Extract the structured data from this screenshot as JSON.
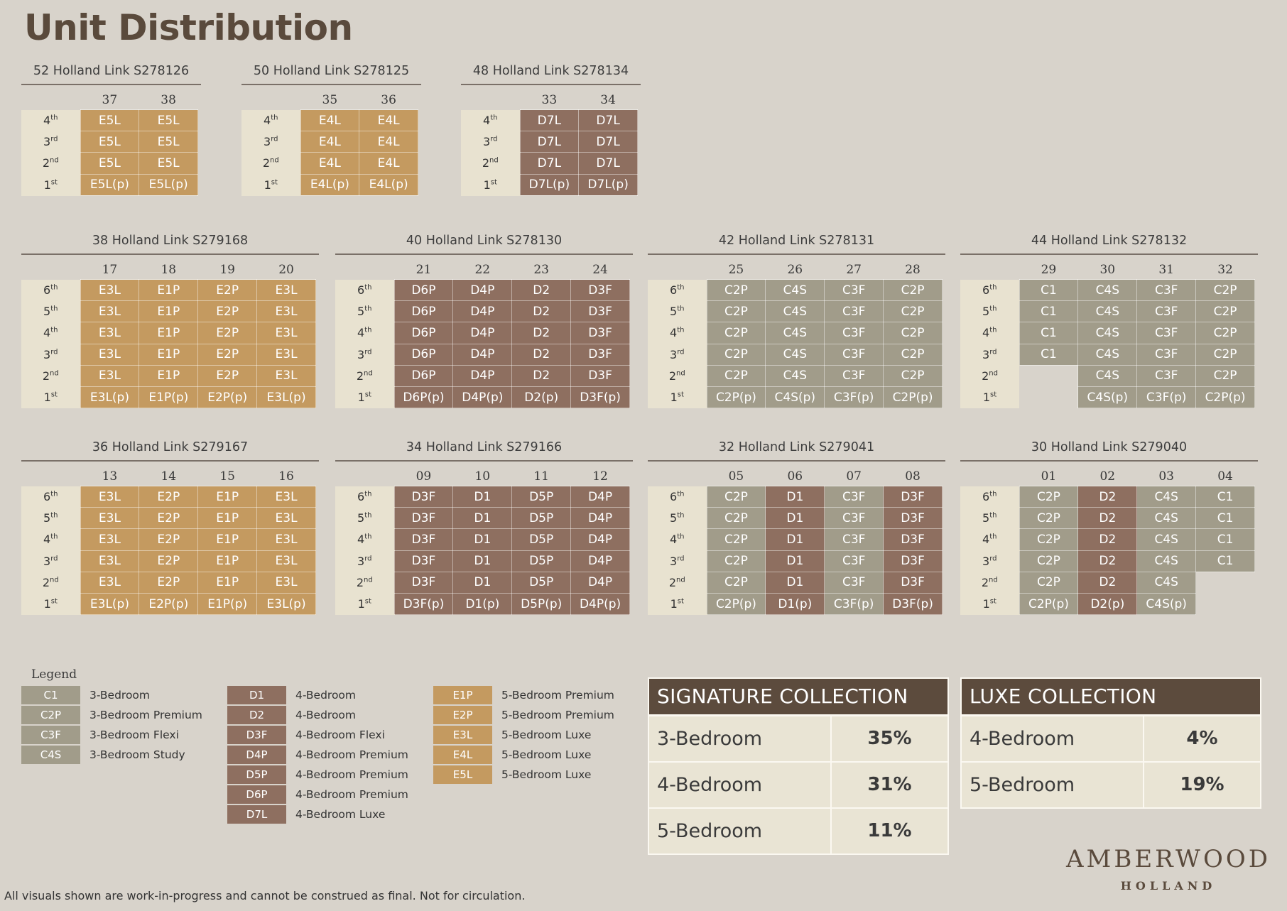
{
  "page": {
    "title": "Unit Distribution",
    "disclaimer": "All visuals shown are work-in-progress and cannot be construed as final.  Not for circulation."
  },
  "colors": {
    "E": "#c49a60",
    "D": "#8e6f60",
    "C": "#a19c8a",
    "floor_bg": "#e8e2d0"
  },
  "blocks": [
    {
      "title": "52 Holland Link S278126",
      "stacks": [
        "37",
        "38"
      ],
      "floors": [
        {
          "f": "4",
          "s": "th",
          "u": [
            "E5L",
            "E5L"
          ]
        },
        {
          "f": "3",
          "s": "rd",
          "u": [
            "E5L",
            "E5L"
          ]
        },
        {
          "f": "2",
          "s": "nd",
          "u": [
            "E5L",
            "E5L"
          ]
        },
        {
          "f": "1",
          "s": "st",
          "u": [
            "E5L(p)",
            "E5L(p)"
          ]
        }
      ]
    },
    {
      "title": "50 Holland Link S278125",
      "stacks": [
        "35",
        "36"
      ],
      "floors": [
        {
          "f": "4",
          "s": "th",
          "u": [
            "E4L",
            "E4L"
          ]
        },
        {
          "f": "3",
          "s": "rd",
          "u": [
            "E4L",
            "E4L"
          ]
        },
        {
          "f": "2",
          "s": "nd",
          "u": [
            "E4L",
            "E4L"
          ]
        },
        {
          "f": "1",
          "s": "st",
          "u": [
            "E4L(p)",
            "E4L(p)"
          ]
        }
      ]
    },
    {
      "title": "48 Holland Link S278134",
      "stacks": [
        "33",
        "34"
      ],
      "floors": [
        {
          "f": "4",
          "s": "th",
          "u": [
            "D7L",
            "D7L"
          ]
        },
        {
          "f": "3",
          "s": "rd",
          "u": [
            "D7L",
            "D7L"
          ]
        },
        {
          "f": "2",
          "s": "nd",
          "u": [
            "D7L",
            "D7L"
          ]
        },
        {
          "f": "1",
          "s": "st",
          "u": [
            "D7L(p)",
            "D7L(p)"
          ]
        }
      ]
    },
    {
      "title": "38 Holland Link S279168",
      "stacks": [
        "17",
        "18",
        "19",
        "20"
      ],
      "floors": [
        {
          "f": "6",
          "s": "th",
          "u": [
            "E3L",
            "E1P",
            "E2P",
            "E3L"
          ]
        },
        {
          "f": "5",
          "s": "th",
          "u": [
            "E3L",
            "E1P",
            "E2P",
            "E3L"
          ]
        },
        {
          "f": "4",
          "s": "th",
          "u": [
            "E3L",
            "E1P",
            "E2P",
            "E3L"
          ]
        },
        {
          "f": "3",
          "s": "rd",
          "u": [
            "E3L",
            "E1P",
            "E2P",
            "E3L"
          ]
        },
        {
          "f": "2",
          "s": "nd",
          "u": [
            "E3L",
            "E1P",
            "E2P",
            "E3L"
          ]
        },
        {
          "f": "1",
          "s": "st",
          "u": [
            "E3L(p)",
            "E1P(p)",
            "E2P(p)",
            "E3L(p)"
          ]
        }
      ]
    },
    {
      "title": "40 Holland Link S278130",
      "stacks": [
        "21",
        "22",
        "23",
        "24"
      ],
      "floors": [
        {
          "f": "6",
          "s": "th",
          "u": [
            "D6P",
            "D4P",
            "D2",
            "D3F"
          ]
        },
        {
          "f": "5",
          "s": "th",
          "u": [
            "D6P",
            "D4P",
            "D2",
            "D3F"
          ]
        },
        {
          "f": "4",
          "s": "th",
          "u": [
            "D6P",
            "D4P",
            "D2",
            "D3F"
          ]
        },
        {
          "f": "3",
          "s": "rd",
          "u": [
            "D6P",
            "D4P",
            "D2",
            "D3F"
          ]
        },
        {
          "f": "2",
          "s": "nd",
          "u": [
            "D6P",
            "D4P",
            "D2",
            "D3F"
          ]
        },
        {
          "f": "1",
          "s": "st",
          "u": [
            "D6P(p)",
            "D4P(p)",
            "D2(p)",
            "D3F(p)"
          ]
        }
      ]
    },
    {
      "title": "42 Holland Link S278131",
      "stacks": [
        "25",
        "26",
        "27",
        "28"
      ],
      "floors": [
        {
          "f": "6",
          "s": "th",
          "u": [
            "C2P",
            "C4S",
            "C3F",
            "C2P"
          ]
        },
        {
          "f": "5",
          "s": "th",
          "u": [
            "C2P",
            "C4S",
            "C3F",
            "C2P"
          ]
        },
        {
          "f": "4",
          "s": "th",
          "u": [
            "C2P",
            "C4S",
            "C3F",
            "C2P"
          ]
        },
        {
          "f": "3",
          "s": "rd",
          "u": [
            "C2P",
            "C4S",
            "C3F",
            "C2P"
          ]
        },
        {
          "f": "2",
          "s": "nd",
          "u": [
            "C2P",
            "C4S",
            "C3F",
            "C2P"
          ]
        },
        {
          "f": "1",
          "s": "st",
          "u": [
            "C2P(p)",
            "C4S(p)",
            "C3F(p)",
            "C2P(p)"
          ]
        }
      ]
    },
    {
      "title": "44 Holland Link S278132",
      "stacks": [
        "29",
        "30",
        "31",
        "32"
      ],
      "floors": [
        {
          "f": "6",
          "s": "th",
          "u": [
            "C1",
            "C4S",
            "C3F",
            "C2P"
          ]
        },
        {
          "f": "5",
          "s": "th",
          "u": [
            "C1",
            "C4S",
            "C3F",
            "C2P"
          ]
        },
        {
          "f": "4",
          "s": "th",
          "u": [
            "C1",
            "C4S",
            "C3F",
            "C2P"
          ]
        },
        {
          "f": "3",
          "s": "rd",
          "u": [
            "C1",
            "C4S",
            "C3F",
            "C2P"
          ]
        },
        {
          "f": "2",
          "s": "nd",
          "u": [
            "",
            "C4S",
            "C3F",
            "C2P"
          ]
        },
        {
          "f": "1",
          "s": "st",
          "u": [
            "",
            "C4S(p)",
            "C3F(p)",
            "C2P(p)"
          ]
        }
      ]
    },
    {
      "title": "36 Holland Link S279167",
      "stacks": [
        "13",
        "14",
        "15",
        "16"
      ],
      "floors": [
        {
          "f": "6",
          "s": "th",
          "u": [
            "E3L",
            "E2P",
            "E1P",
            "E3L"
          ]
        },
        {
          "f": "5",
          "s": "th",
          "u": [
            "E3L",
            "E2P",
            "E1P",
            "E3L"
          ]
        },
        {
          "f": "4",
          "s": "th",
          "u": [
            "E3L",
            "E2P",
            "E1P",
            "E3L"
          ]
        },
        {
          "f": "3",
          "s": "rd",
          "u": [
            "E3L",
            "E2P",
            "E1P",
            "E3L"
          ]
        },
        {
          "f": "2",
          "s": "nd",
          "u": [
            "E3L",
            "E2P",
            "E1P",
            "E3L"
          ]
        },
        {
          "f": "1",
          "s": "st",
          "u": [
            "E3L(p)",
            "E2P(p)",
            "E1P(p)",
            "E3L(p)"
          ]
        }
      ]
    },
    {
      "title": "34 Holland Link S279166",
      "stacks": [
        "09",
        "10",
        "11",
        "12"
      ],
      "floors": [
        {
          "f": "6",
          "s": "th",
          "u": [
            "D3F",
            "D1",
            "D5P",
            "D4P"
          ]
        },
        {
          "f": "5",
          "s": "th",
          "u": [
            "D3F",
            "D1",
            "D5P",
            "D4P"
          ]
        },
        {
          "f": "4",
          "s": "th",
          "u": [
            "D3F",
            "D1",
            "D5P",
            "D4P"
          ]
        },
        {
          "f": "3",
          "s": "rd",
          "u": [
            "D3F",
            "D1",
            "D5P",
            "D4P"
          ]
        },
        {
          "f": "2",
          "s": "nd",
          "u": [
            "D3F",
            "D1",
            "D5P",
            "D4P"
          ]
        },
        {
          "f": "1",
          "s": "st",
          "u": [
            "D3F(p)",
            "D1(p)",
            "D5P(p)",
            "D4P(p)"
          ]
        }
      ]
    },
    {
      "title": "32 Holland Link S279041",
      "stacks": [
        "05",
        "06",
        "07",
        "08"
      ],
      "floors": [
        {
          "f": "6",
          "s": "th",
          "u": [
            "C2P",
            "D1",
            "C3F",
            "D3F"
          ]
        },
        {
          "f": "5",
          "s": "th",
          "u": [
            "C2P",
            "D1",
            "C3F",
            "D3F"
          ]
        },
        {
          "f": "4",
          "s": "th",
          "u": [
            "C2P",
            "D1",
            "C3F",
            "D3F"
          ]
        },
        {
          "f": "3",
          "s": "rd",
          "u": [
            "C2P",
            "D1",
            "C3F",
            "D3F"
          ]
        },
        {
          "f": "2",
          "s": "nd",
          "u": [
            "C2P",
            "D1",
            "C3F",
            "D3F"
          ]
        },
        {
          "f": "1",
          "s": "st",
          "u": [
            "C2P(p)",
            "D1(p)",
            "C3F(p)",
            "D3F(p)"
          ]
        }
      ]
    },
    {
      "title": "30 Holland Link S279040",
      "stacks": [
        "01",
        "02",
        "03",
        "04"
      ],
      "floors": [
        {
          "f": "6",
          "s": "th",
          "u": [
            "C2P",
            "D2",
            "C4S",
            "C1"
          ]
        },
        {
          "f": "5",
          "s": "th",
          "u": [
            "C2P",
            "D2",
            "C4S",
            "C1"
          ]
        },
        {
          "f": "4",
          "s": "th",
          "u": [
            "C2P",
            "D2",
            "C4S",
            "C1"
          ]
        },
        {
          "f": "3",
          "s": "rd",
          "u": [
            "C2P",
            "D2",
            "C4S",
            "C1"
          ]
        },
        {
          "f": "2",
          "s": "nd",
          "u": [
            "C2P",
            "D2",
            "C4S",
            ""
          ]
        },
        {
          "f": "1",
          "s": "st",
          "u": [
            "C2P(p)",
            "D2(p)",
            "C4S(p)",
            ""
          ]
        }
      ]
    }
  ],
  "legend": {
    "title": "Legend",
    "columns": [
      [
        {
          "code": "C1",
          "label": "3-Bedroom"
        },
        {
          "code": "C2P",
          "label": "3-Bedroom Premium"
        },
        {
          "code": "C3F",
          "label": "3-Bedroom Flexi"
        },
        {
          "code": "C4S",
          "label": "3-Bedroom Study"
        }
      ],
      [
        {
          "code": "D1",
          "label": "4-Bedroom"
        },
        {
          "code": "D2",
          "label": "4-Bedroom"
        },
        {
          "code": "D3F",
          "label": "4-Bedroom Flexi"
        },
        {
          "code": "D4P",
          "label": "4-Bedroom Premium"
        },
        {
          "code": "D5P",
          "label": "4-Bedroom Premium"
        },
        {
          "code": "D6P",
          "label": "4-Bedroom Premium"
        },
        {
          "code": "D7L",
          "label": "4-Bedroom Luxe"
        }
      ],
      [
        {
          "code": "E1P",
          "label": "5-Bedroom Premium"
        },
        {
          "code": "E2P",
          "label": "5-Bedroom Premium"
        },
        {
          "code": "E3L",
          "label": "5-Bedroom Luxe"
        },
        {
          "code": "E4L",
          "label": "5-Bedroom Luxe"
        },
        {
          "code": "E5L",
          "label": "5-Bedroom Luxe"
        }
      ]
    ]
  },
  "collections": [
    {
      "title": "SIGNATURE COLLECTION",
      "rows": [
        {
          "name": "3-Bedroom",
          "pct": "35%"
        },
        {
          "name": "4-Bedroom",
          "pct": "31%"
        },
        {
          "name": "5-Bedroom",
          "pct": "11%"
        }
      ]
    },
    {
      "title": "LUXE COLLECTION",
      "rows": [
        {
          "name": "4-Bedroom",
          "pct": "4%"
        },
        {
          "name": "5-Bedroom",
          "pct": "19%"
        }
      ]
    }
  ],
  "brand": {
    "name": "AMBERWOOD",
    "sub": "HOLLAND"
  }
}
